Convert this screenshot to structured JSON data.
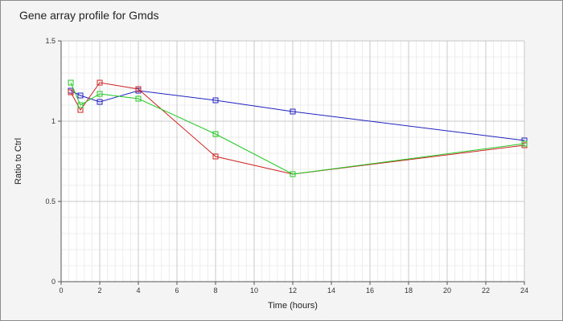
{
  "chart_data": {
    "type": "line",
    "title": "Gene array profile for Gmds",
    "xlabel": "Time (hours)",
    "ylabel": "Ratio to Ctrl",
    "xlim": [
      0,
      24
    ],
    "ylim": [
      0,
      1.5
    ],
    "x_ticks": [
      0,
      2,
      4,
      6,
      8,
      10,
      12,
      14,
      16,
      18,
      20,
      22,
      24
    ],
    "y_ticks": [
      0,
      0.5,
      1,
      1.5
    ],
    "y_tick_labels": [
      "0",
      "0.5",
      "1",
      "1.5"
    ],
    "grid": true,
    "legend": "none",
    "marker": "square",
    "series": [
      {
        "color": "#2020c0",
        "x": [
          0.5,
          1,
          2,
          4,
          8,
          12,
          24
        ],
        "y": [
          1.19,
          1.16,
          1.12,
          1.19,
          1.13,
          1.06,
          0.88
        ]
      },
      {
        "color": "#d02020",
        "x": [
          0.5,
          1,
          2,
          4,
          8,
          12,
          24
        ],
        "y": [
          1.18,
          1.07,
          1.24,
          1.2,
          0.78,
          0.67,
          0.85
        ]
      },
      {
        "color": "#20c820",
        "x": [
          0.5,
          1,
          2,
          4,
          8,
          12,
          24
        ],
        "y": [
          1.24,
          1.1,
          1.17,
          1.14,
          0.92,
          0.67,
          0.86
        ]
      }
    ]
  }
}
